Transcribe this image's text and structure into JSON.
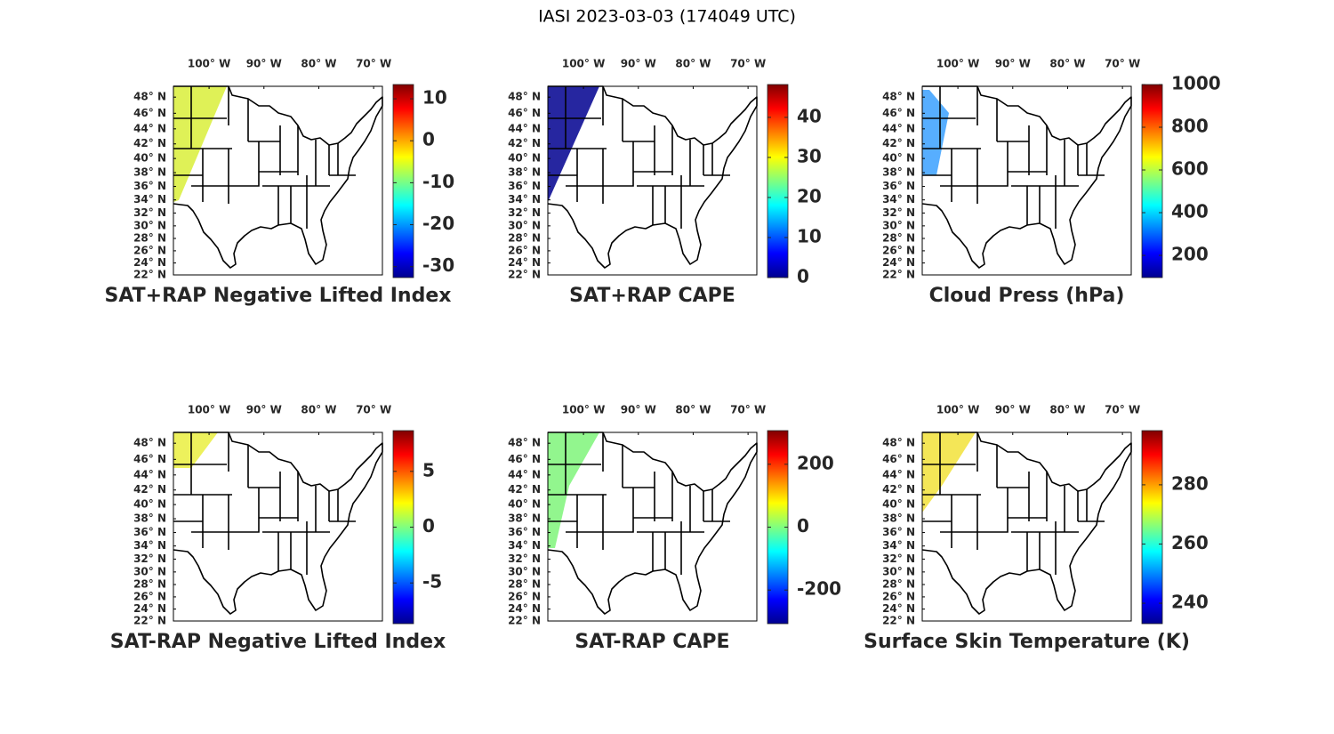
{
  "title": "IASI 2023-03-03 (174049 UTC)",
  "chart_data": [
    {
      "type": "map",
      "title": "SAT+RAP Negative Lifted Index",
      "projection": "mercator",
      "xlim": [
        -106.5,
        -68.4
      ],
      "ylim": [
        22,
        49.3
      ],
      "xticks": [
        {
          "value": -100,
          "label": "100° W"
        },
        {
          "value": -90,
          "label": "90° W"
        },
        {
          "value": -80,
          "label": "80° W"
        },
        {
          "value": -70,
          "label": "70° W"
        }
      ],
      "yticks": [
        {
          "value": 48,
          "label": "48° N"
        },
        {
          "value": 46,
          "label": "46° N"
        },
        {
          "value": 44,
          "label": "44° N"
        },
        {
          "value": 42,
          "label": "42° N"
        },
        {
          "value": 40,
          "label": "40° N"
        },
        {
          "value": 38,
          "label": "38° N"
        },
        {
          "value": 36,
          "label": "36° N"
        },
        {
          "value": 34,
          "label": "34° N"
        },
        {
          "value": 32,
          "label": "32° N"
        },
        {
          "value": 30,
          "label": "30° N"
        },
        {
          "value": 28,
          "label": "28° N"
        },
        {
          "value": 26,
          "label": "26° N"
        },
        {
          "value": 24,
          "label": "24° N"
        },
        {
          "value": 22,
          "label": "22° N"
        }
      ],
      "colorbar": {
        "colormap": "jet",
        "lim": [
          -32.6,
          13.4
        ],
        "ticks": [
          10,
          0,
          -10,
          -20,
          -30
        ]
      }
    },
    {
      "type": "map",
      "title": "SAT+RAP CAPE",
      "projection": "mercator",
      "xlim": [
        -106.5,
        -68.4
      ],
      "ylim": [
        22,
        49.3
      ],
      "xticks": [
        {
          "value": -100,
          "label": "100° W"
        },
        {
          "value": -90,
          "label": "90° W"
        },
        {
          "value": -80,
          "label": "80° W"
        },
        {
          "value": -70,
          "label": "70° W"
        }
      ],
      "yticks": [
        {
          "value": 48,
          "label": "48° N"
        },
        {
          "value": 46,
          "label": "46° N"
        },
        {
          "value": 44,
          "label": "44° N"
        },
        {
          "value": 42,
          "label": "42° N"
        },
        {
          "value": 40,
          "label": "40° N"
        },
        {
          "value": 38,
          "label": "38° N"
        },
        {
          "value": 36,
          "label": "36° N"
        },
        {
          "value": 34,
          "label": "34° N"
        },
        {
          "value": 32,
          "label": "32° N"
        },
        {
          "value": 30,
          "label": "30° N"
        },
        {
          "value": 28,
          "label": "28° N"
        },
        {
          "value": 26,
          "label": "26° N"
        },
        {
          "value": 24,
          "label": "24° N"
        },
        {
          "value": 22,
          "label": "22° N"
        }
      ],
      "colorbar": {
        "colormap": "jet",
        "lim": [
          0,
          48.2
        ],
        "ticks": [
          40,
          30,
          20,
          10,
          0
        ]
      }
    },
    {
      "type": "map",
      "title": "Cloud Press (hPa)",
      "projection": "mercator",
      "xlim": [
        -106.5,
        -68.4
      ],
      "ylim": [
        22,
        49.3
      ],
      "xticks": [
        {
          "value": -100,
          "label": "100° W"
        },
        {
          "value": -90,
          "label": "90° W"
        },
        {
          "value": -80,
          "label": "80° W"
        },
        {
          "value": -70,
          "label": "70° W"
        }
      ],
      "yticks": [
        {
          "value": 48,
          "label": "48° N"
        },
        {
          "value": 46,
          "label": "46° N"
        },
        {
          "value": 44,
          "label": "44° N"
        },
        {
          "value": 42,
          "label": "42° N"
        },
        {
          "value": 40,
          "label": "40° N"
        },
        {
          "value": 38,
          "label": "38° N"
        },
        {
          "value": 36,
          "label": "36° N"
        },
        {
          "value": 34,
          "label": "34° N"
        },
        {
          "value": 32,
          "label": "32° N"
        },
        {
          "value": 30,
          "label": "30° N"
        },
        {
          "value": 28,
          "label": "28° N"
        },
        {
          "value": 26,
          "label": "26° N"
        },
        {
          "value": 24,
          "label": "24° N"
        },
        {
          "value": 22,
          "label": "22° N"
        }
      ],
      "colorbar": {
        "colormap": "jet",
        "lim": [
          96,
          1000
        ],
        "ticks": [
          1000,
          800,
          600,
          400,
          200
        ]
      }
    },
    {
      "type": "map",
      "title": "SAT-RAP Negative Lifted Index",
      "projection": "mercator",
      "xlim": [
        -106.5,
        -68.4
      ],
      "ylim": [
        22,
        49.3
      ],
      "xticks": [
        {
          "value": -100,
          "label": "100° W"
        },
        {
          "value": -90,
          "label": "90° W"
        },
        {
          "value": -80,
          "label": "80° W"
        },
        {
          "value": -70,
          "label": "70° W"
        }
      ],
      "yticks": [
        {
          "value": 48,
          "label": "48° N"
        },
        {
          "value": 46,
          "label": "46° N"
        },
        {
          "value": 44,
          "label": "44° N"
        },
        {
          "value": 42,
          "label": "42° N"
        },
        {
          "value": 40,
          "label": "40° N"
        },
        {
          "value": 38,
          "label": "38° N"
        },
        {
          "value": 36,
          "label": "36° N"
        },
        {
          "value": 34,
          "label": "34° N"
        },
        {
          "value": 32,
          "label": "32° N"
        },
        {
          "value": 30,
          "label": "30° N"
        },
        {
          "value": 28,
          "label": "28° N"
        },
        {
          "value": 26,
          "label": "26° N"
        },
        {
          "value": 24,
          "label": "24° N"
        },
        {
          "value": 22,
          "label": "22° N"
        }
      ],
      "colorbar": {
        "colormap": "jet",
        "lim": [
          -8.65,
          8.65
        ],
        "ticks": [
          5,
          0,
          -5
        ]
      }
    },
    {
      "type": "map",
      "title": "SAT-RAP CAPE",
      "projection": "mercator",
      "xlim": [
        -106.5,
        -68.4
      ],
      "ylim": [
        22,
        49.3
      ],
      "xticks": [
        {
          "value": -100,
          "label": "100° W"
        },
        {
          "value": -90,
          "label": "90° W"
        },
        {
          "value": -80,
          "label": "80° W"
        },
        {
          "value": -70,
          "label": "70° W"
        }
      ],
      "yticks": [
        {
          "value": 48,
          "label": "48° N"
        },
        {
          "value": 46,
          "label": "46° N"
        },
        {
          "value": 44,
          "label": "44° N"
        },
        {
          "value": 42,
          "label": "42° N"
        },
        {
          "value": 40,
          "label": "40° N"
        },
        {
          "value": 38,
          "label": "38° N"
        },
        {
          "value": 36,
          "label": "36° N"
        },
        {
          "value": 34,
          "label": "34° N"
        },
        {
          "value": 32,
          "label": "32° N"
        },
        {
          "value": 30,
          "label": "30° N"
        },
        {
          "value": 28,
          "label": "28° N"
        },
        {
          "value": 26,
          "label": "26° N"
        },
        {
          "value": 24,
          "label": "24° N"
        },
        {
          "value": 22,
          "label": "22° N"
        }
      ],
      "colorbar": {
        "colormap": "jet",
        "lim": [
          -307,
          307
        ],
        "ticks": [
          200,
          0,
          -200
        ]
      }
    },
    {
      "type": "map",
      "title": "Surface Skin Temperature (K)",
      "projection": "mercator",
      "xlim": [
        -106.5,
        -68.4
      ],
      "ylim": [
        22,
        49.3
      ],
      "xticks": [
        {
          "value": -100,
          "label": "100° W"
        },
        {
          "value": -90,
          "label": "90° W"
        },
        {
          "value": -80,
          "label": "80° W"
        },
        {
          "value": -70,
          "label": "70° W"
        }
      ],
      "yticks": [
        {
          "value": 48,
          "label": "48° N"
        },
        {
          "value": 46,
          "label": "46° N"
        },
        {
          "value": 44,
          "label": "44° N"
        },
        {
          "value": 42,
          "label": "42° N"
        },
        {
          "value": 40,
          "label": "40° N"
        },
        {
          "value": 38,
          "label": "38° N"
        },
        {
          "value": 36,
          "label": "36° N"
        },
        {
          "value": 34,
          "label": "34° N"
        },
        {
          "value": 32,
          "label": "32° N"
        },
        {
          "value": 30,
          "label": "30° N"
        },
        {
          "value": 28,
          "label": "28° N"
        },
        {
          "value": 26,
          "label": "26° N"
        },
        {
          "value": 24,
          "label": "24° N"
        },
        {
          "value": 22,
          "label": "22° N"
        }
      ],
      "colorbar": {
        "colormap": "jet",
        "lim": [
          233.1,
          298.3
        ],
        "ticks": [
          280,
          260,
          240
        ]
      }
    }
  ]
}
